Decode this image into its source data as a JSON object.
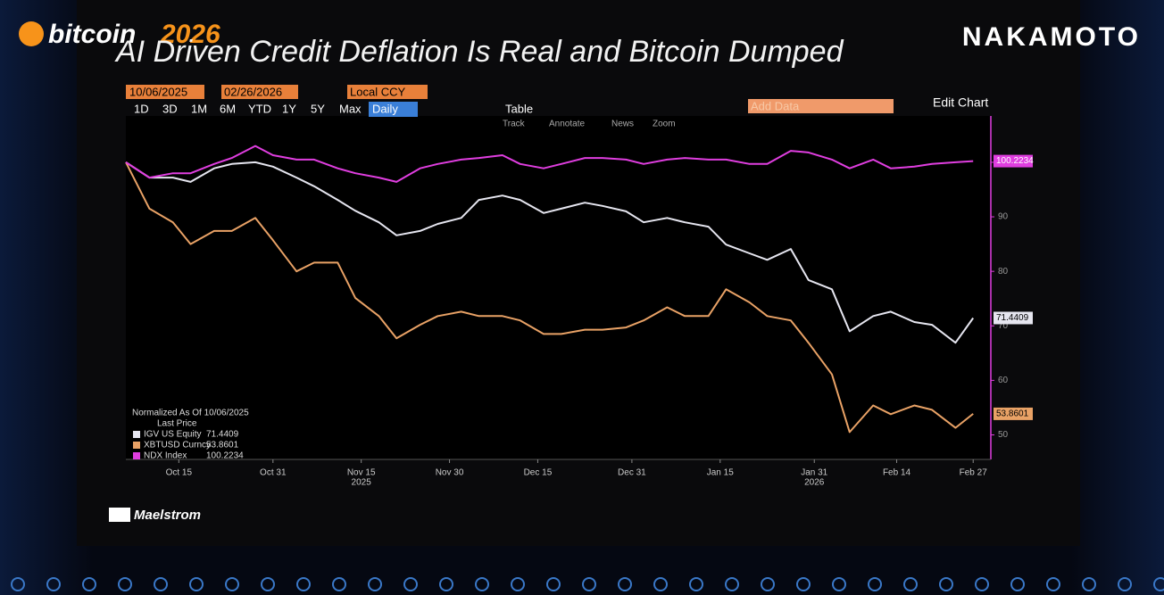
{
  "page": {
    "brand_left": "bitcoin",
    "brand_left_year": "2026",
    "brand_right": "NAKAMOTO",
    "footer_logo": "Maelstrom",
    "toolbar": {
      "start_date": "10/06/2025",
      "end_date": "02/26/2026",
      "currency": "Local CCY",
      "ranges": [
        "1D",
        "3D",
        "1M",
        "6M",
        "YTD",
        "1Y",
        "5Y",
        "Max"
      ],
      "frequency": "Daily",
      "table": "Table",
      "tools": [
        "Track",
        "Annotate",
        "News",
        "Zoom"
      ],
      "add_data": "Add Data",
      "edit_chart": "Edit Chart"
    }
  },
  "chart_data": {
    "type": "line",
    "title": "AI Driven Credit Deflation Is Real and Bitcoin Dumped",
    "legend_title": "Normalized As Of 10/06/2025",
    "legend_subtitle": "Last Price",
    "x": [
      "2025-10-06",
      "2025-10-10",
      "2025-10-14",
      "2025-10-17",
      "2025-10-21",
      "2025-10-24",
      "2025-10-28",
      "2025-10-31",
      "2025-11-04",
      "2025-11-07",
      "2025-11-11",
      "2025-11-14",
      "2025-11-18",
      "2025-11-21",
      "2025-11-25",
      "2025-11-28",
      "2025-12-02",
      "2025-12-05",
      "2025-12-09",
      "2025-12-12",
      "2025-12-16",
      "2025-12-19",
      "2025-12-23",
      "2025-12-26",
      "2025-12-30",
      "2026-01-02",
      "2026-01-06",
      "2026-01-09",
      "2026-01-13",
      "2026-01-16",
      "2026-01-20",
      "2026-01-23",
      "2026-01-27",
      "2026-01-30",
      "2026-02-03",
      "2026-02-06",
      "2026-02-10",
      "2026-02-13",
      "2026-02-17",
      "2026-02-20",
      "2026-02-24",
      "2026-02-27"
    ],
    "xlim": [
      "2025-10-06",
      "2026-03-02"
    ],
    "xticks": [
      {
        "value": "2025-10-15",
        "label": "Oct 15"
      },
      {
        "value": "2025-10-31",
        "label": "Oct 31"
      },
      {
        "value": "2025-11-15",
        "label": "Nov 15"
      },
      {
        "value": "2025-11-30",
        "label": "Nov 30"
      },
      {
        "value": "2025-12-15",
        "label": "Dec 15"
      },
      {
        "value": "2025-12-31",
        "label": "Dec 31"
      },
      {
        "value": "2026-01-15",
        "label": "Jan 15"
      },
      {
        "value": "2026-01-31",
        "label": "Jan 31"
      },
      {
        "value": "2026-02-14",
        "label": "Feb 14"
      },
      {
        "value": "2026-02-27",
        "label": "Feb 27"
      }
    ],
    "year_labels": [
      {
        "value": "2025-11-15",
        "label": "2025"
      },
      {
        "value": "2026-01-31",
        "label": "2026"
      }
    ],
    "ylim": [
      45.5,
      108.5
    ],
    "yticks": [
      50,
      60,
      70,
      80,
      90,
      100
    ],
    "grid": false,
    "series": [
      {
        "name": "IGV US Equity",
        "color": "#e6e6f0",
        "values": [
          100,
          97.2,
          97.2,
          96.4,
          98.9,
          99.7,
          100,
          99.2,
          97.2,
          95.6,
          93.1,
          91.1,
          89,
          86.6,
          87.4,
          88.7,
          89.8,
          93.1,
          93.9,
          93.1,
          90.7,
          91.5,
          92.6,
          92,
          91,
          89,
          89.8,
          89,
          88.2,
          84.9,
          83.3,
          82.1,
          84.1,
          78.4,
          76.7,
          69,
          71.8,
          72.6,
          70.7,
          70.2,
          66.9,
          71.4409
        ]
      },
      {
        "name": "XBTUSD Curncy",
        "color": "#e9a266",
        "values": [
          100,
          91.5,
          89,
          85,
          87.4,
          87.4,
          89.8,
          85.7,
          80,
          81.6,
          81.6,
          75.1,
          71.8,
          67.7,
          70.2,
          71.8,
          72.6,
          71.8,
          71.8,
          71,
          68.5,
          68.5,
          69.3,
          69.3,
          69.7,
          71,
          73.4,
          71.8,
          71.8,
          76.7,
          74.3,
          71.8,
          71,
          66.9,
          61.1,
          50.5,
          55.4,
          53.8,
          55.4,
          54.6,
          51.3,
          53.8601
        ]
      },
      {
        "name": "NDX Index",
        "color": "#e03ee0",
        "values": [
          100,
          97.2,
          98,
          98,
          99.7,
          100.8,
          103,
          101.3,
          100.5,
          100.5,
          98.9,
          98,
          97.2,
          96.4,
          98.9,
          99.7,
          100.5,
          100.8,
          101.3,
          99.7,
          98.9,
          99.7,
          100.8,
          100.8,
          100.5,
          99.7,
          100.5,
          100.8,
          100.5,
          100.5,
          99.7,
          99.7,
          102.1,
          101.8,
          100.5,
          98.9,
          100.5,
          98.9,
          99.2,
          99.7,
          100,
          100.2234
        ]
      }
    ]
  }
}
